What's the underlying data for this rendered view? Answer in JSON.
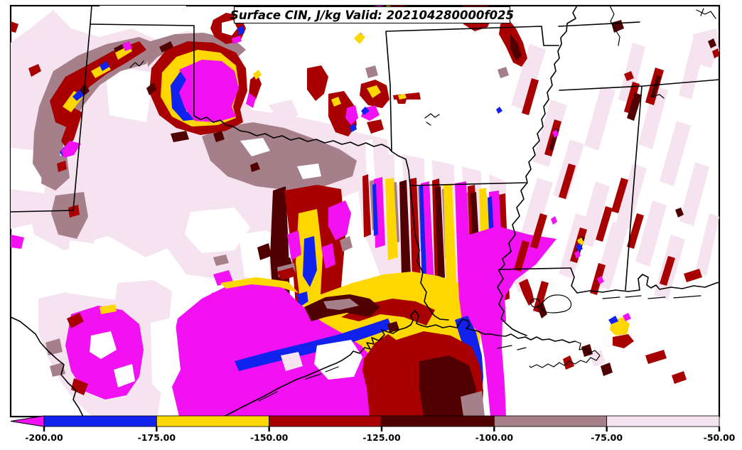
{
  "header": {
    "title": "Surface CIN, J/kg Valid: 202104280000f025"
  },
  "colorbar": {
    "orientation": "horizontal-bottom",
    "tick_labels": [
      "-200.00",
      "-175.00",
      "-150.00",
      "-125.00",
      "-100.00",
      "-75.00",
      "-50.00"
    ],
    "segment_colors": [
      "#1122EE",
      "#FFD700",
      "#A80000",
      "#500000",
      "#A5808A",
      "#F6E3F0"
    ],
    "arrow_color": "#F211F2",
    "outline_color": "#000000"
  },
  "chart_data": {
    "type": "heatmap",
    "title": "Surface CIN, J/kg Valid: 202104280000f025",
    "variable": "Surface CIN",
    "units": "J/kg",
    "valid_label": "202104280000f025",
    "levels": [
      -200,
      -175,
      -150,
      -125,
      -100,
      -75,
      -50
    ],
    "bins": [
      {
        "range": "< -200",
        "color": "#F211F2"
      },
      {
        "range": "-200 to -175",
        "color": "#1122EE"
      },
      {
        "range": "-175 to -150",
        "color": "#FFD700"
      },
      {
        "range": "-150 to -125",
        "color": "#A80000"
      },
      {
        "range": "-125 to -100",
        "color": "#500000"
      },
      {
        "range": "-100 to -75",
        "color": "#A5808A"
      },
      {
        "range": "-75 to -50",
        "color": "#F6E3F0"
      },
      {
        "range": "> -50",
        "color": "#FFFFFF"
      }
    ],
    "colorbar_position": "bottom",
    "extend": "min",
    "legend_position": "bottom",
    "region_hint": "South-central United States (Texas, Oklahoma, Arkansas, Louisiana, Mississippi) with Gulf of Mexico coastline"
  }
}
